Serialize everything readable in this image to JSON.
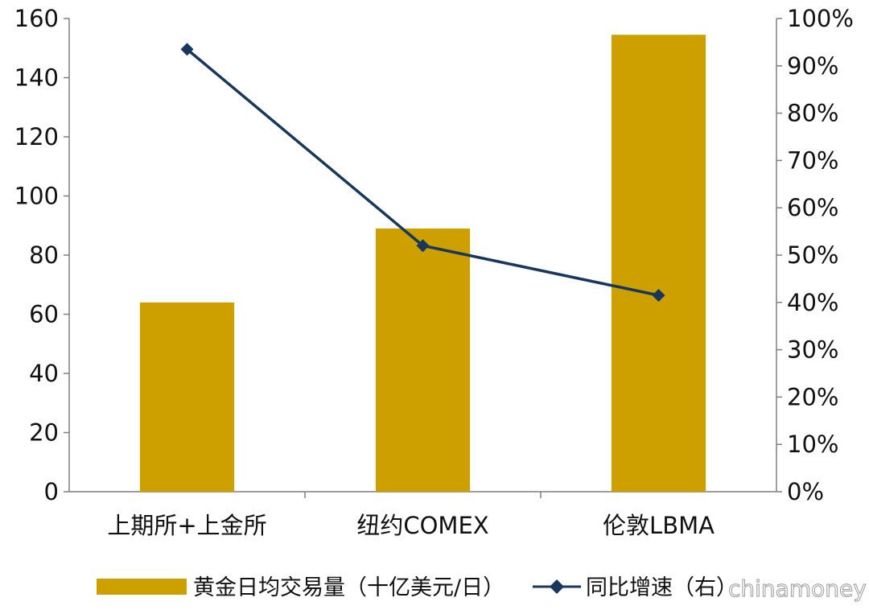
{
  "chart_data": {
    "type": "bar",
    "categories": [
      "上期所+上金所",
      "纽约COMEX",
      "伦敦LBMA"
    ],
    "series": [
      {
        "name": "黄金日均交易量（十亿美元/日）",
        "type": "bar",
        "axis": "left",
        "color": "#CDA000",
        "values": [
          64,
          89,
          154.5
        ]
      },
      {
        "name": "同比增速（右）",
        "type": "line",
        "axis": "right",
        "color": "#17375E",
        "values": [
          93.5,
          52,
          41.5
        ]
      }
    ],
    "y_left": {
      "min": 0,
      "max": 160,
      "step": 20,
      "ticks": [
        "0",
        "20",
        "40",
        "60",
        "80",
        "100",
        "120",
        "140",
        "160"
      ]
    },
    "y_right": {
      "min": 0,
      "max": 100,
      "step": 10,
      "ticks": [
        "0%",
        "10%",
        "20%",
        "30%",
        "40%",
        "50%",
        "60%",
        "70%",
        "80%",
        "90%",
        "100%"
      ]
    },
    "legend": {
      "position": "bottom"
    },
    "grid": false
  },
  "watermark": "chinamoney"
}
